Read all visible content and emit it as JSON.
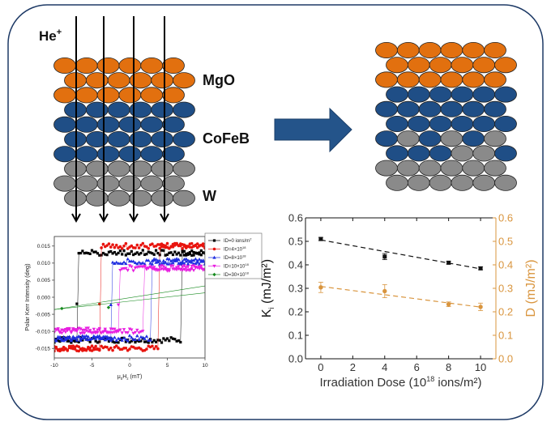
{
  "labels": {
    "ion": "He",
    "ion_sup": "+",
    "layer1": "MgO",
    "layer2": "CoFeB",
    "layer3": "W"
  },
  "colors": {
    "orange": "#e2700f",
    "blue": "#1f4e86",
    "gray": "#8a8a8a",
    "arrow": "#24548a",
    "frame": "#1e3a66",
    "d_series": "#d9953e"
  },
  "lattice_before": [
    "OOOOOO",
    "OOOOOO",
    "OOOOOO",
    "BBBBBB",
    "BBBBBB",
    "BBBBBB",
    "BBBBBB",
    "GGGGGG",
    "GGGGGG",
    "GGGGGG"
  ],
  "lattice_after": [
    "OOOOOO",
    "OOOOOO",
    "OOOOOO",
    "BBBBBB",
    "BBBBBB",
    "BBBBBB",
    "BGBGBG",
    "BBBGGB",
    "GGGGGG",
    "GGGGGG"
  ],
  "chart_data": [
    {
      "type": "line",
      "title": "",
      "xlabel": {
        "main": "μ",
        "sub1": "0",
        "mid": "H",
        "sub2": "z",
        "rest": " (mT)"
      },
      "ylabel": "Polar Kerr Intensity (deg)",
      "xlim": [
        -10,
        10
      ],
      "ylim": [
        -0.0178,
        0.0178
      ],
      "xticks": [
        "-10",
        "-5",
        "0",
        "5",
        "10"
      ],
      "xtick_values": [
        -10,
        -5,
        0,
        5,
        10
      ],
      "yticks": [
        "0.015",
        "0.010",
        "0.005",
        "0.000",
        "-0.005",
        "-0.010",
        "-0.015"
      ],
      "ytick_values": [
        0.015,
        0.01,
        0.005,
        0,
        -0.005,
        -0.01,
        -0.015
      ],
      "legend_position": "top-right",
      "series": [
        {
          "name": "ID=0 ions/m",
          "sup": "2",
          "color": "#000000",
          "marker": "square",
          "switch_down": -7,
          "switch_up": 7,
          "top": 0.013,
          "bottom": -0.0125
        },
        {
          "name": "ID=4×10",
          "sup": "18",
          "color": "#e8140e",
          "marker": "circle",
          "switch_down": -4,
          "switch_up": 4,
          "top": 0.015,
          "bottom": -0.015
        },
        {
          "name": "ID=8×10",
          "sup": "18",
          "color": "#1f2ee0",
          "marker": "triangle-up",
          "switch_down": -2.5,
          "switch_up": 3,
          "top": 0.0105,
          "bottom": -0.012
        },
        {
          "name": "ID=10×10",
          "sup": "18",
          "color": "#e81fe0",
          "marker": "triangle-down",
          "switch_down": -1.5,
          "switch_up": 2,
          "top": 0.0085,
          "bottom": -0.0098
        },
        {
          "name": "ID=30×10",
          "sup": "18",
          "color": "#168a1e",
          "marker": "diamond",
          "linear": [
            [
              -10,
              -0.0036,
              10,
              0.0033
            ],
            [
              -10,
              -0.0036,
              10,
              0.0013
            ]
          ],
          "points": [
            [
              -9,
              -0.0033
            ],
            [
              -2.8,
              -0.003
            ]
          ]
        }
      ]
    },
    {
      "type": "scatter",
      "title": "",
      "xlabel": {
        "main": "Irradiation Dose (10",
        "sup": "18",
        "rest": " ions/m²)"
      },
      "ylabel_left": {
        "main": "K",
        "sub": "i",
        "rest": " (mJ/m²)"
      },
      "ylabel_right": "D (mJ/m²)",
      "xlim": [
        -0.96,
        10.96
      ],
      "ylim": [
        0,
        0.6
      ],
      "xticks": [
        "0",
        "2",
        "4",
        "6",
        "8",
        "10"
      ],
      "xtick_values": [
        0,
        2,
        4,
        6,
        8,
        10
      ],
      "yticks": [
        "0.0",
        "0.1",
        "0.2",
        "0.3",
        "0.4",
        "0.5",
        "0.6"
      ],
      "ytick_values": [
        0,
        0.1,
        0.2,
        0.3,
        0.4,
        0.5,
        0.6
      ],
      "series": [
        {
          "name": "Ki",
          "axis": "left",
          "color": "#111111",
          "x": [
            0,
            4,
            8,
            10
          ],
          "y": [
            0.51,
            0.435,
            0.409,
            0.385
          ],
          "err": [
            0.007,
            0.013,
            0.006,
            0.006
          ],
          "fit": [
            0.506,
            -0.0123
          ]
        },
        {
          "name": "D",
          "axis": "right",
          "color": "#d9953e",
          "x": [
            0,
            4,
            8,
            10
          ],
          "y": [
            0.304,
            0.288,
            0.232,
            0.221
          ],
          "err": [
            0.022,
            0.028,
            0.01,
            0.016
          ],
          "fit": [
            0.308,
            -0.0088
          ]
        }
      ]
    }
  ]
}
